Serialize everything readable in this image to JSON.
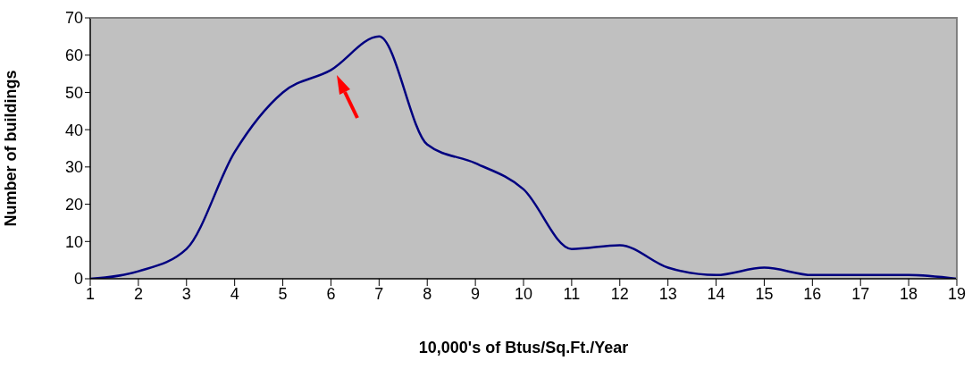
{
  "chart_data": {
    "type": "line",
    "xlabel": "10,000's of Btus/Sq.Ft./Year",
    "ylabel": "Number of buildings",
    "x": [
      1,
      2,
      3,
      4,
      5,
      6,
      7,
      8,
      9,
      10,
      11,
      12,
      13,
      14,
      15,
      16,
      17,
      18,
      19
    ],
    "series": [
      {
        "color": "#000080",
        "values": [
          0,
          2,
          8,
          34,
          50,
          56,
          65,
          36,
          31,
          24,
          8,
          9,
          3,
          1,
          3,
          1,
          1,
          1,
          0
        ]
      }
    ],
    "xlim": [
      1,
      19
    ],
    "xticks": [
      1,
      2,
      3,
      4,
      5,
      6,
      7,
      8,
      9,
      10,
      11,
      12,
      13,
      14,
      15,
      16,
      17,
      18,
      19
    ],
    "ylim": [
      0,
      70
    ],
    "yticks": [
      0,
      10,
      20,
      30,
      40,
      50,
      60,
      70
    ],
    "grid": false,
    "legend": false,
    "marker": "none",
    "line_style": "solid"
  }
}
